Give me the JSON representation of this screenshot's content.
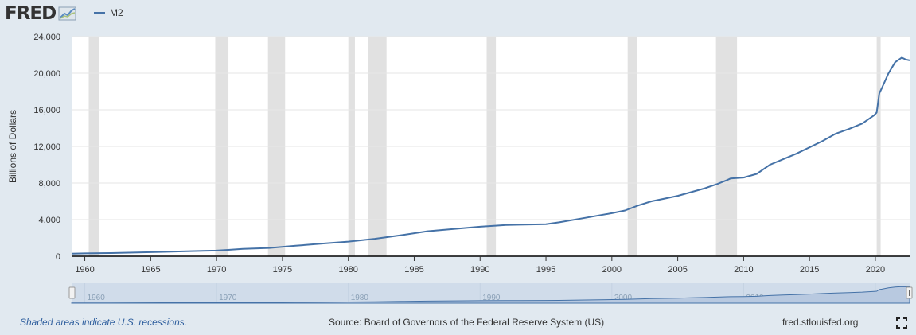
{
  "header": {
    "logo_text": "FRED",
    "legend_label": "M2"
  },
  "colors": {
    "series": "#4572a7",
    "recession": "#e1e1e1",
    "navigator_fill": "#b8c9e0",
    "navigator_bg": "#d0dcea"
  },
  "chart_data": {
    "type": "line",
    "title": "",
    "xlabel": "",
    "ylabel": "Billions of Dollars",
    "xlim": [
      1959.0,
      2022.6
    ],
    "ylim": [
      0,
      24000
    ],
    "yticks": [
      0,
      4000,
      8000,
      12000,
      16000,
      20000,
      24000
    ],
    "ytick_labels": [
      "0",
      "4,000",
      "8,000",
      "12,000",
      "16,000",
      "20,000",
      "24,000"
    ],
    "xticks": [
      1960,
      1965,
      1970,
      1975,
      1980,
      1985,
      1990,
      1995,
      2000,
      2005,
      2010,
      2015,
      2020
    ],
    "xtick_labels": [
      "1960",
      "1965",
      "1970",
      "1975",
      "1980",
      "1985",
      "1990",
      "1995",
      "2000",
      "2005",
      "2010",
      "2015",
      "2020"
    ],
    "navigator_ticks": [
      1960,
      1970,
      1980,
      1990,
      2000,
      2010,
      2020
    ],
    "navigator_labels": [
      "1960",
      "1970",
      "1980",
      "1990",
      "2000",
      "2010",
      "2020"
    ],
    "recessions": [
      [
        1960.3,
        1961.1
      ],
      [
        1969.9,
        1970.9
      ],
      [
        1973.9,
        1975.2
      ],
      [
        1980.0,
        1980.5
      ],
      [
        1981.5,
        1982.9
      ],
      [
        1990.5,
        1991.2
      ],
      [
        2001.2,
        2001.9
      ],
      [
        2007.9,
        2009.5
      ],
      [
        2020.1,
        2020.4
      ]
    ],
    "series": [
      {
        "name": "M2",
        "x": [
          1959.0,
          1960,
          1962,
          1964,
          1966,
          1968,
          1970,
          1971,
          1972,
          1974,
          1976,
          1978,
          1980,
          1982,
          1984,
          1986,
          1988,
          1990,
          1992,
          1993,
          1995,
          1996,
          1998,
          2000,
          2001,
          2002,
          2003,
          2004,
          2005,
          2006,
          2007,
          2008,
          2008.7,
          2009,
          2010,
          2011,
          2011.6,
          2012,
          2013,
          2014,
          2015,
          2016,
          2017,
          2018,
          2019,
          2019.9,
          2020.1,
          2020.3,
          2020.5,
          2021,
          2021.5,
          2022,
          2022.3,
          2022.6
        ],
        "values": [
          290,
          310,
          350,
          420,
          480,
          560,
          620,
          700,
          800,
          900,
          1150,
          1380,
          1600,
          1900,
          2300,
          2730,
          2980,
          3230,
          3420,
          3440,
          3500,
          3700,
          4200,
          4700,
          5000,
          5550,
          6000,
          6300,
          6600,
          7000,
          7400,
          7900,
          8300,
          8500,
          8600,
          9000,
          9600,
          10000,
          10600,
          11200,
          11900,
          12600,
          13400,
          13900,
          14500,
          15400,
          15700,
          17800,
          18400,
          20000,
          21200,
          21700,
          21500,
          21400
        ]
      }
    ]
  },
  "footer": {
    "note": "Shaded areas indicate U.S. recessions.",
    "source": "Source: Board of Governors of the Federal Reserve System (US)",
    "site": "fred.stlouisfed.org"
  }
}
